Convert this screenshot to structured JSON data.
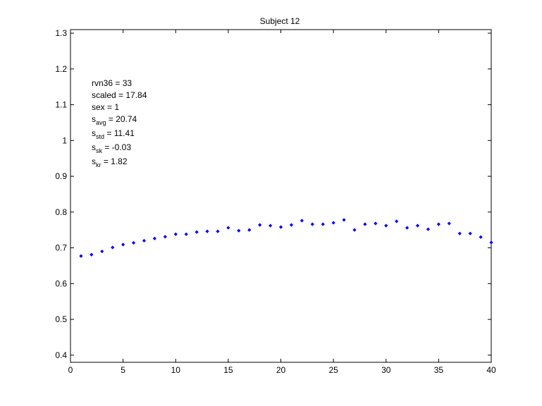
{
  "chart_data": {
    "type": "scatter",
    "title": "Subject 12",
    "xlabel": "",
    "ylabel": "",
    "xlim": [
      0,
      40
    ],
    "ylim": [
      0.38,
      1.31
    ],
    "x_ticks": [
      0,
      5,
      10,
      15,
      20,
      25,
      30,
      35,
      40
    ],
    "x_tick_labels": [
      "0",
      "5",
      "10",
      "15",
      "20",
      "25",
      "30",
      "35",
      "40"
    ],
    "y_ticks": [
      0.4,
      0.5,
      0.6,
      0.7,
      0.8,
      0.9,
      1.0,
      1.1,
      1.2,
      1.3
    ],
    "y_tick_labels": [
      "0.4",
      "0.5",
      "0.6",
      "0.7",
      "0.8",
      "0.9",
      "1",
      "1.1",
      "1.2",
      "1.3"
    ],
    "grid": false,
    "marker_color": "#0000ff",
    "series": [
      {
        "x": [
          1,
          2,
          3,
          4,
          5,
          6,
          7,
          8,
          9,
          10,
          11,
          12,
          13,
          14,
          15,
          16,
          17,
          18,
          19,
          20,
          21,
          22,
          23,
          24,
          25,
          26,
          27,
          28,
          29,
          30,
          31,
          32,
          33,
          34,
          35,
          36,
          37,
          38,
          39,
          40
        ],
        "y": [
          0.677,
          0.681,
          0.69,
          0.701,
          0.709,
          0.714,
          0.72,
          0.726,
          0.731,
          0.738,
          0.738,
          0.744,
          0.746,
          0.746,
          0.756,
          0.748,
          0.75,
          0.764,
          0.762,
          0.758,
          0.764,
          0.776,
          0.766,
          0.766,
          0.77,
          0.778,
          0.75,
          0.766,
          0.768,
          0.762,
          0.774,
          0.756,
          0.762,
          0.752,
          0.766,
          0.768,
          0.74,
          0.74,
          0.73,
          0.715
        ]
      }
    ],
    "annotations": [
      {
        "text": "rvn36 = 33"
      },
      {
        "text": "scaled = 17.84"
      },
      {
        "text": "sex   = 1"
      },
      {
        "base": "s",
        "sub": "avg",
        "rest": " = 20.74"
      },
      {
        "base": "s",
        "sub": "std",
        "rest": " = 11.41"
      },
      {
        "base": "s",
        "sub": "sk",
        "rest": " = -0.03"
      },
      {
        "base": "s",
        "sub": "kr",
        "rest": " = 1.82"
      }
    ]
  }
}
